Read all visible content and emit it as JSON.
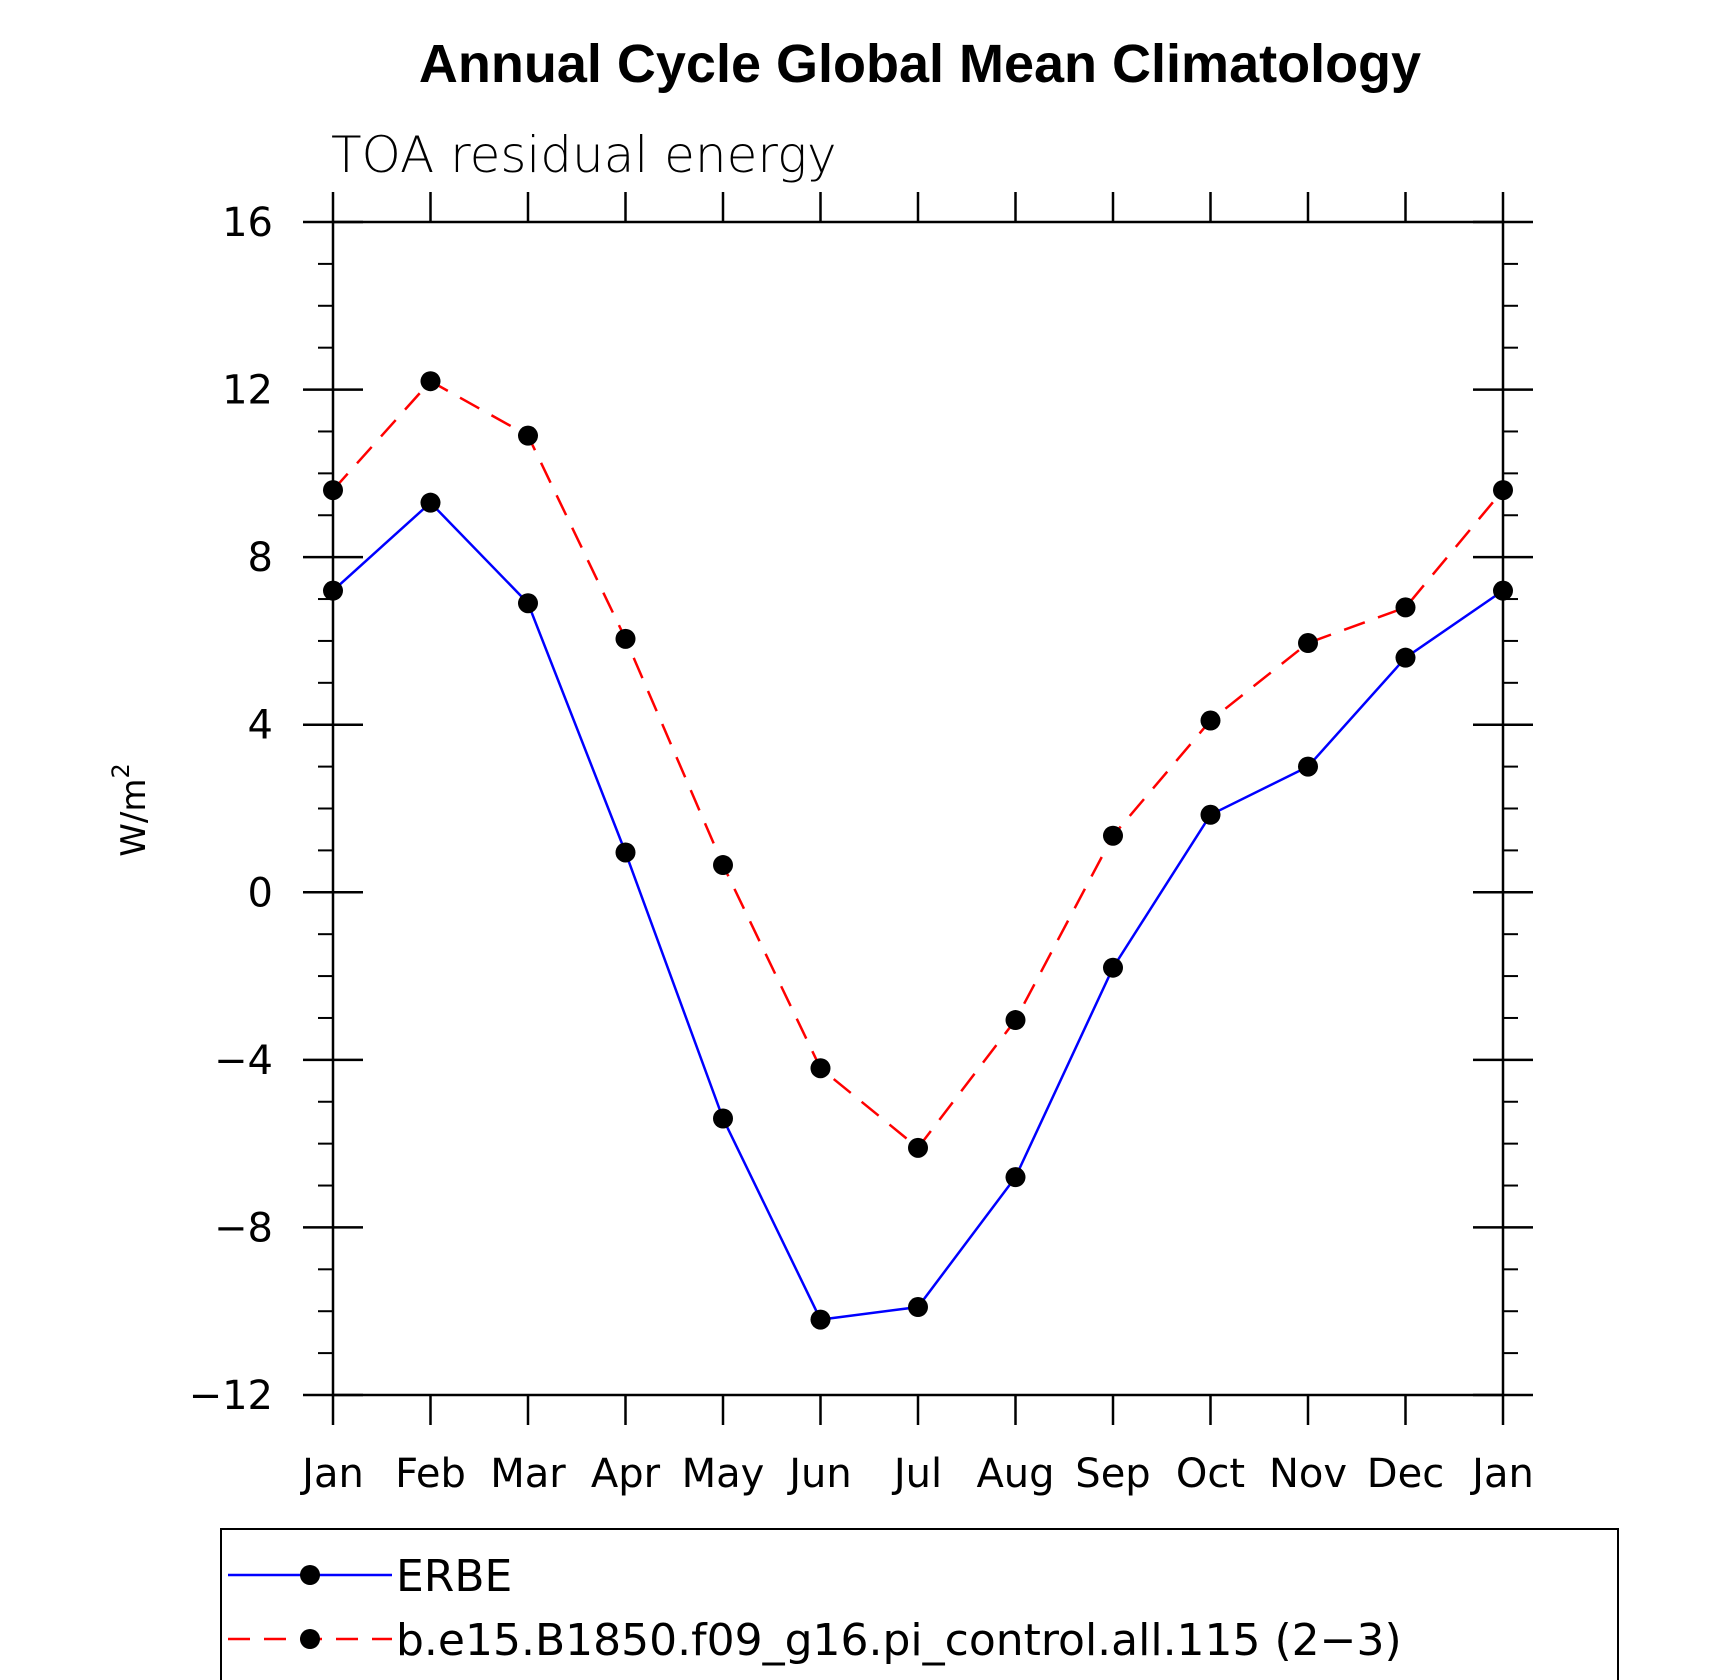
{
  "chart_data": {
    "type": "line",
    "title": "Annual Cycle Global Mean Climatology",
    "subtitle": "TOA residual energy",
    "ylabel": "W/m",
    "ylabel_superscript": "2",
    "categories": [
      "Jan",
      "Feb",
      "Mar",
      "Apr",
      "May",
      "Jun",
      "Jul",
      "Aug",
      "Sep",
      "Oct",
      "Nov",
      "Dec",
      "Jan"
    ],
    "ylim": [
      -12,
      16
    ],
    "yticks": [
      -12,
      -8,
      -4,
      0,
      4,
      8,
      12,
      16
    ],
    "ytick_labels": [
      "−12",
      "−8",
      "−4",
      "0",
      "4",
      "8",
      "12",
      "16"
    ],
    "grid": false,
    "legend_position": "bottom",
    "series": [
      {
        "name": "ERBE",
        "color": "#0000ff",
        "line_style": "solid",
        "marker": "filled-circle",
        "values": [
          7.2,
          9.3,
          6.9,
          0.95,
          -5.4,
          -10.2,
          -9.9,
          -6.8,
          -1.8,
          1.85,
          3.0,
          5.6,
          7.2
        ]
      },
      {
        "name": "b.e15.B1850.f09_g16.pi_control.all.115 (2−3)",
        "color": "#ff0000",
        "line_style": "dashed",
        "marker": "filled-circle",
        "values": [
          9.6,
          12.2,
          10.9,
          6.05,
          0.65,
          -4.2,
          -6.1,
          -3.05,
          1.35,
          4.1,
          5.95,
          6.8,
          9.6
        ]
      }
    ]
  }
}
